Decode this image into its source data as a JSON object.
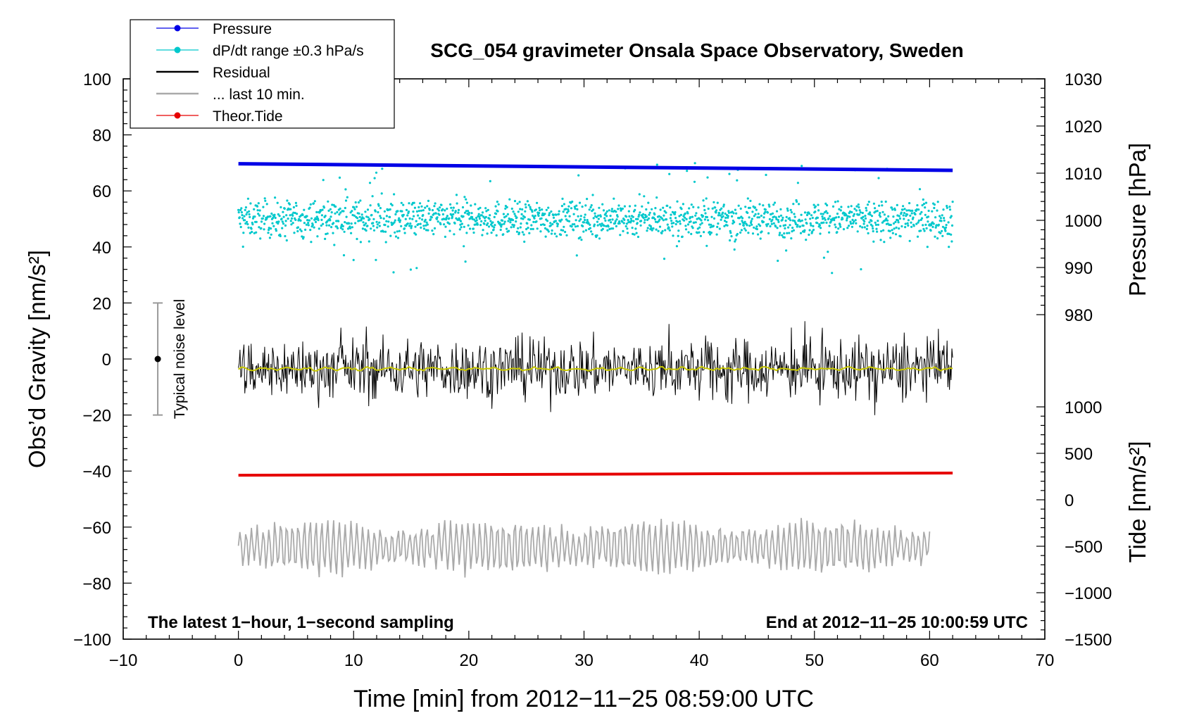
{
  "chart_data": {
    "type": "line",
    "title": "SCG_054 gravimeter Onsala Space Observatory, Sweden",
    "xlabel": "Time [min] from 2012−11−25 08:59:00 UTC",
    "ylabel_left": "Obs’d Gravity [nm/s²]",
    "ylabel_right_top": "Pressure [hPa]",
    "ylabel_right_bottom": "Tide [nm/s²]",
    "xlim": [
      -10,
      70
    ],
    "ylim": [
      -100,
      100
    ],
    "pressure_axis": {
      "range": [
        980,
        1030
      ]
    },
    "tide_axis": {
      "range": [
        -1500,
        1000
      ]
    },
    "x_ticks": [
      -10,
      0,
      10,
      20,
      30,
      40,
      50,
      60,
      70
    ],
    "x_tick_labels": [
      "−10",
      "0",
      "10",
      "20",
      "30",
      "40",
      "50",
      "60",
      "70"
    ],
    "y_ticks": [
      -100,
      -80,
      -60,
      -40,
      -20,
      0,
      20,
      40,
      60,
      80,
      100
    ],
    "y_tick_labels": [
      "−100",
      "−80",
      "−60",
      "−40",
      "−20",
      "0",
      "20",
      "40",
      "60",
      "80",
      "100"
    ],
    "pressure_ticks": [
      980,
      990,
      1000,
      1010,
      1020,
      1030
    ],
    "pressure_tick_labels": [
      "980",
      "990",
      "1000",
      "1010",
      "1020",
      "1030"
    ],
    "tide_ticks": [
      -1500,
      -1000,
      -500,
      0,
      500,
      1000
    ],
    "tide_tick_labels": [
      "−1500",
      "−1000",
      "−500",
      "0",
      "500",
      "1000"
    ],
    "legend": {
      "position": "top-left",
      "entries": [
        {
          "label": "Pressure",
          "color": "#0000e6",
          "marker": true
        },
        {
          "label": "dP/dt range ±0.3 hPa/s",
          "color": "#00c8cc",
          "marker": true
        },
        {
          "label": "Residual",
          "color": "#000000",
          "marker": false
        },
        {
          "label": "... last 10 min.",
          "color": "#aaaaaa",
          "marker": false
        },
        {
          "label": "Theor.Tide",
          "color": "#e60000",
          "marker": true
        }
      ]
    },
    "series": [
      {
        "name": "Pressure",
        "axis": "pressure",
        "color": "#0000e6",
        "x": [
          0,
          62
        ],
        "values": [
          1012,
          1010.6
        ]
      },
      {
        "name": "dP/dt range ±0.3 hPa/s",
        "axis": "gravity",
        "color": "#00c8cc",
        "x_range": [
          0,
          62
        ],
        "center": 50,
        "spread": 8
      },
      {
        "name": "Residual",
        "axis": "gravity",
        "color": "#000000",
        "x_range": [
          0,
          62
        ],
        "center": -3.5,
        "spread": 6
      },
      {
        "name": "Residual smoothed",
        "axis": "gravity",
        "color": "#c8c800",
        "x_range": [
          0,
          62
        ],
        "center": -3.5
      },
      {
        "name": "... last 10 min.",
        "axis": "gravity",
        "color": "#aaaaaa",
        "x_range": [
          0,
          60
        ],
        "center": -67,
        "amplitude": 9
      },
      {
        "name": "Theor.Tide",
        "axis": "gravity",
        "color": "#e60000",
        "x": [
          0,
          62
        ],
        "values": [
          -41.5,
          -40.7
        ]
      }
    ],
    "noise_bar": {
      "label": "Typical noise level",
      "x": -7,
      "center": 0,
      "low": -20,
      "high": 20,
      "color": "#999999"
    },
    "annotations": {
      "bottom_left": "The latest 1−hour, 1−second sampling",
      "bottom_right": "End at 2012−11−25 10:00:59 UTC"
    }
  }
}
